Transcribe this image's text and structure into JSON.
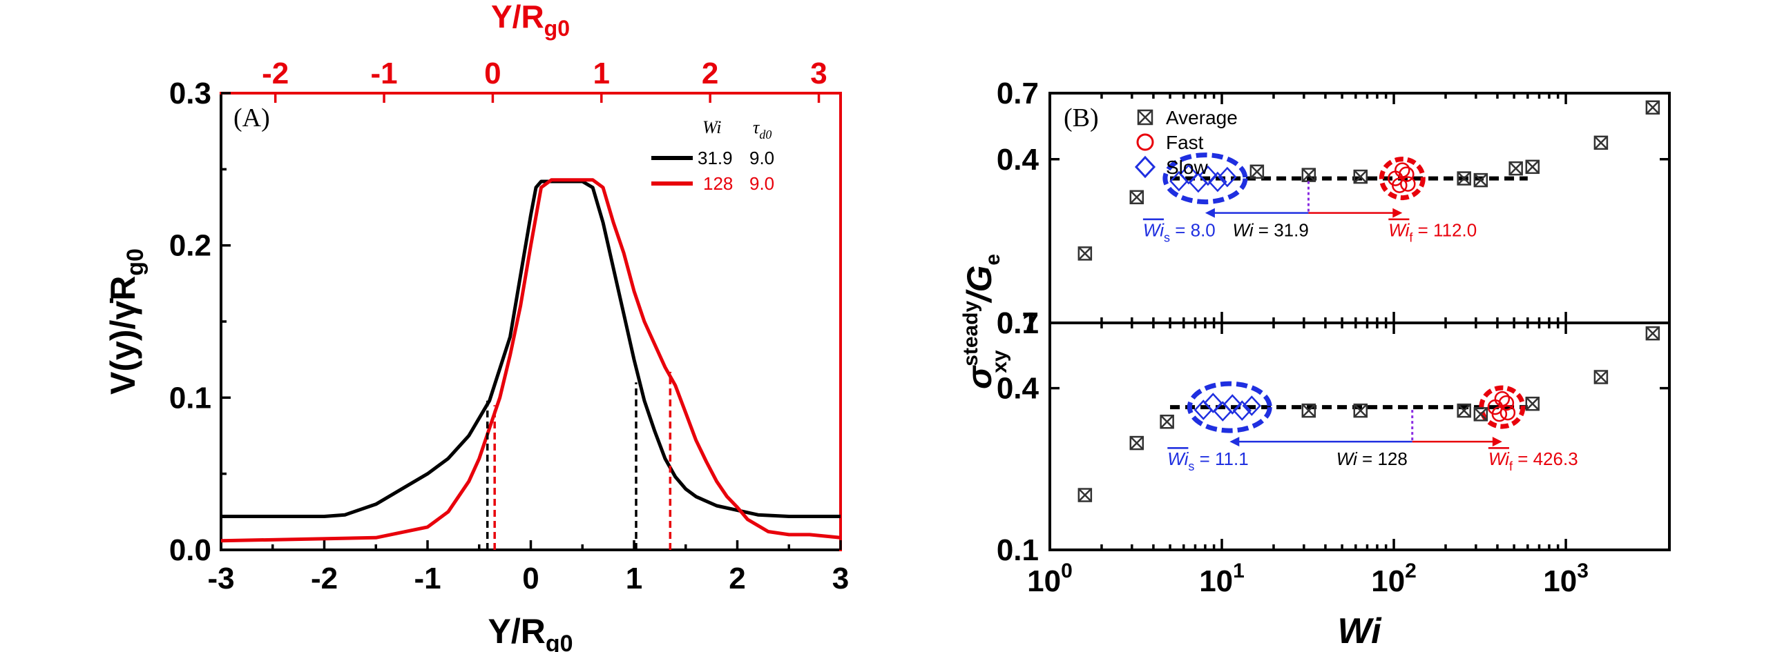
{
  "chart_data": [
    {
      "panel": "(A)",
      "type": "line",
      "xlabel": "Y/R",
      "xlabel_sub": "g0",
      "top_xlabel": "Y/R",
      "top_xlabel_sub": "g0",
      "ylabel": "V(y)/γ̇R",
      "ylabel_sub": "g0",
      "xlim": [
        -3,
        3
      ],
      "ylim": [
        0,
        0.3
      ],
      "top_xlim": [
        -2.5,
        3.2
      ],
      "xticks": [
        "-3",
        "-2",
        "-1",
        "0",
        "1",
        "2",
        "3"
      ],
      "yticks": [
        "0.0",
        "0.1",
        "0.2",
        "0.3"
      ],
      "top_xticks": [
        "-2",
        "-1",
        "0",
        "1",
        "2",
        "3"
      ],
      "legend_header": [
        "Wi",
        "τ",
        "d0"
      ],
      "series": [
        {
          "name": "31.9",
          "tau": "9.0",
          "color": "#000000",
          "x": [
            -3,
            -2,
            -1.8,
            -1.5,
            -1.2,
            -1.0,
            -0.8,
            -0.6,
            -0.4,
            -0.2,
            -0.1,
            0.0,
            0.05,
            0.1,
            0.3,
            0.5,
            0.6,
            0.7,
            0.8,
            0.9,
            1.0,
            1.1,
            1.2,
            1.3,
            1.4,
            1.5,
            1.6,
            1.8,
            2.0,
            2.2,
            2.5,
            3.0
          ],
          "y": [
            0.022,
            0.022,
            0.023,
            0.03,
            0.042,
            0.05,
            0.06,
            0.075,
            0.098,
            0.14,
            0.18,
            0.22,
            0.238,
            0.242,
            0.242,
            0.242,
            0.238,
            0.215,
            0.185,
            0.155,
            0.125,
            0.098,
            0.078,
            0.06,
            0.048,
            0.04,
            0.035,
            0.029,
            0.026,
            0.023,
            0.022,
            0.022
          ]
        },
        {
          "name": "128",
          "tau": "9.0",
          "color": "#e8000b",
          "x": [
            -3,
            -1.5,
            -1.0,
            -0.8,
            -0.6,
            -0.5,
            -0.4,
            -0.3,
            -0.2,
            -0.1,
            0.0,
            0.1,
            0.2,
            0.6,
            0.7,
            0.8,
            0.9,
            1.0,
            1.1,
            1.2,
            1.3,
            1.4,
            1.5,
            1.6,
            1.7,
            1.8,
            1.9,
            2.0,
            2.1,
            2.3,
            2.5,
            2.7,
            3.0
          ],
          "y": [
            0.006,
            0.008,
            0.015,
            0.025,
            0.045,
            0.06,
            0.08,
            0.1,
            0.128,
            0.16,
            0.2,
            0.238,
            0.243,
            0.243,
            0.238,
            0.215,
            0.195,
            0.17,
            0.15,
            0.135,
            0.12,
            0.108,
            0.09,
            0.072,
            0.058,
            0.045,
            0.035,
            0.028,
            0.02,
            0.012,
            0.01,
            0.01,
            0.008
          ]
        }
      ],
      "dashed_markers": [
        {
          "x": -0.42,
          "y": 0.098,
          "color": "#000000"
        },
        {
          "x": 1.02,
          "y": 0.11,
          "color": "#000000"
        },
        {
          "x": -0.35,
          "y": 0.095,
          "color": "#e8000b"
        },
        {
          "x": 1.35,
          "y": 0.117,
          "color": "#e8000b"
        }
      ]
    },
    {
      "panel": "(B)",
      "type": "scatter",
      "xscale": "log",
      "xlabel": "Wi",
      "ylabel": "σ",
      "ylabel_sup": "steady",
      "ylabel_sub": "xy",
      "ylabel_tail": "/G",
      "ylabel_tail_sub": "e",
      "xlim": [
        1,
        4000
      ],
      "xticks": [
        {
          "base": "10",
          "exp": "0"
        },
        {
          "base": "10",
          "exp": "1"
        },
        {
          "base": "10",
          "exp": "2"
        },
        {
          "base": "10",
          "exp": "3"
        }
      ],
      "yscale": "log",
      "ylim": [
        0.1,
        0.7
      ],
      "yticks": [
        "0.1",
        "0.4",
        "0.7"
      ],
      "legend": [
        {
          "label": "Average",
          "marker": "boxed-x",
          "color": "#000000"
        },
        {
          "label": "Fast",
          "marker": "circle",
          "color": "#e8000b"
        },
        {
          "label": "Slow",
          "marker": "diamond",
          "color": "#1f2fe0"
        }
      ],
      "subplots": [
        {
          "average": {
            "x": [
              1.6,
              3.2,
              16,
              32,
              64,
              256,
              320,
              512,
              640,
              1600,
              3200
            ],
            "y": [
              0.18,
              0.29,
              0.36,
              0.35,
              0.345,
              0.34,
              0.335,
              0.37,
              0.375,
              0.46,
              0.62
            ]
          },
          "average_line_x": [
            5,
            600
          ],
          "average_line_y": 0.34,
          "slow": {
            "center_wi": 8.0,
            "y": 0.34,
            "label_prefix": "Wi",
            "label_sub": "s",
            "label_value": " = 8.0"
          },
          "fast": {
            "center_wi": 112.0,
            "y": 0.34,
            "label_prefix": "Wi",
            "label_sub": "f",
            "label_value": " = 112.0"
          },
          "wi": {
            "value": 31.9,
            "label_prefix": "Wi",
            "label_value": " = 31.9"
          }
        },
        {
          "average": {
            "x": [
              1.6,
              3.2,
              4.8,
              32,
              64,
              256,
              320,
              640,
              1600,
              3200
            ],
            "y": [
              0.16,
              0.25,
              0.3,
              0.33,
              0.33,
              0.33,
              0.32,
              0.35,
              0.44,
              0.64
            ]
          },
          "average_line_x": [
            5,
            600
          ],
          "average_line_y": 0.34,
          "slow": {
            "center_wi": 11.1,
            "y": 0.34,
            "label_prefix": "Wi",
            "label_sub": "s",
            "label_value": " = 11.1"
          },
          "fast": {
            "center_wi": 426.3,
            "y": 0.34,
            "label_prefix": "Wi",
            "label_sub": "f",
            "label_value": " = 426.3"
          },
          "wi": {
            "value": 128,
            "label_prefix": "Wi",
            "label_value": " = 128"
          }
        }
      ]
    }
  ]
}
